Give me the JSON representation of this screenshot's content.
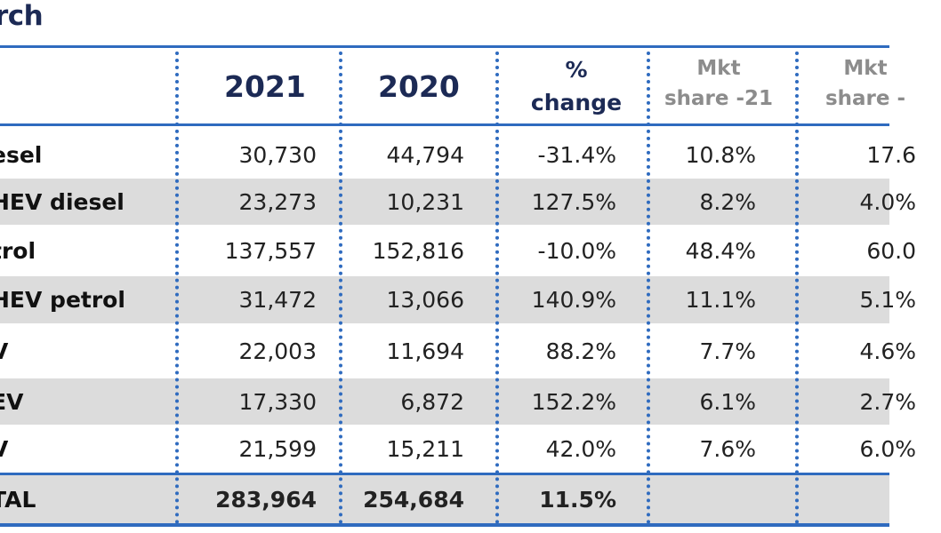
{
  "title": "rch",
  "headers": {
    "col2021": "2021",
    "col2020": "2020",
    "change_line1": "%",
    "change_line2": "change",
    "mkt21_line1": "Mkt",
    "mkt21_line2": "share -21",
    "mkt20_line1": "Mkt",
    "mkt20_line2": "share -"
  },
  "rows": [
    {
      "label": "esel",
      "y2021": "30,730",
      "y2020": "44,794",
      "change": "-31.4%",
      "mkt21": "10.8%",
      "mkt20": "17.6"
    },
    {
      "label": "HEV diesel",
      "y2021": "23,273",
      "y2020": "10,231",
      "change": "127.5%",
      "mkt21": "8.2%",
      "mkt20": "4.0%"
    },
    {
      "label": "trol",
      "y2021": "137,557",
      "y2020": "152,816",
      "change": "-10.0%",
      "mkt21": "48.4%",
      "mkt20": "60.0"
    },
    {
      "label": "HEV petrol",
      "y2021": "31,472",
      "y2020": "13,066",
      "change": "140.9%",
      "mkt21": "11.1%",
      "mkt20": "5.1%"
    },
    {
      "label": "V",
      "y2021": "22,003",
      "y2020": "11,694",
      "change": "88.2%",
      "mkt21": "7.7%",
      "mkt20": "4.6%"
    },
    {
      "label": "EV",
      "y2021": "17,330",
      "y2020": "6,872",
      "change": "152.2%",
      "mkt21": "6.1%",
      "mkt20": "2.7%"
    },
    {
      "label": "V",
      "y2021": "21,599",
      "y2020": "15,211",
      "change": "42.0%",
      "mkt21": "7.6%",
      "mkt20": "6.0%"
    }
  ],
  "total": {
    "label": "TAL",
    "y2021": "283,964",
    "y2020": "254,684",
    "change": "11.5%"
  },
  "colors": {
    "rule": "#2f6bbf",
    "title": "#1c2a55",
    "shade": "#dcdcdc",
    "muted_header": "#8c8c8c"
  }
}
